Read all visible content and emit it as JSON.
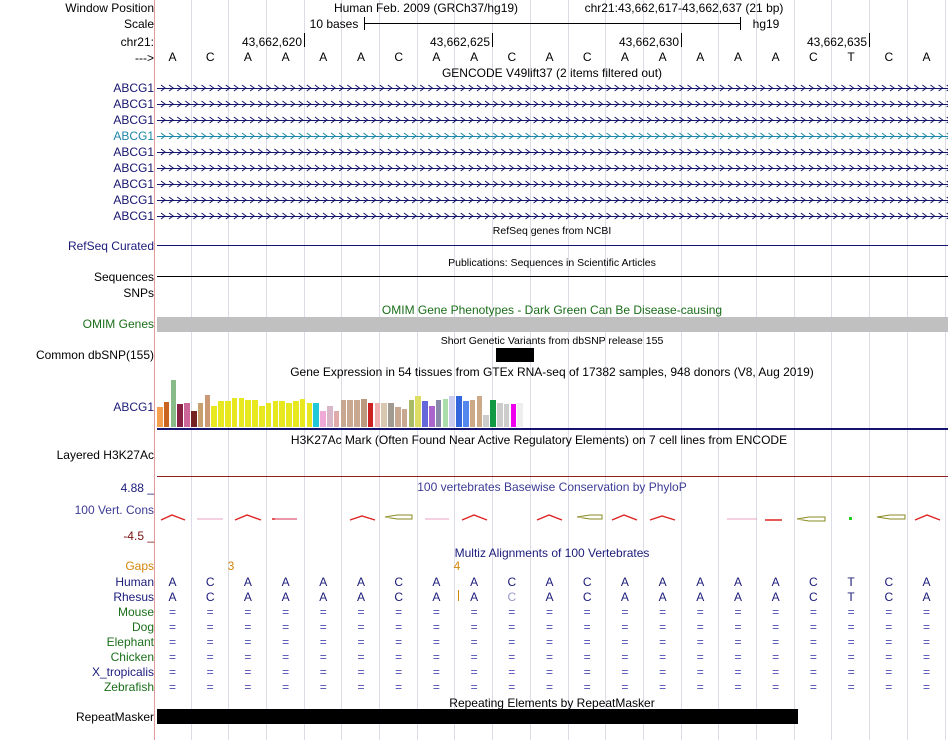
{
  "header": {
    "window_position_label": "Window Position",
    "assembly": "Human Feb. 2009 (GRCh37/hg19)",
    "position": "chr21:43,662,617-43,662,637 (21 bp)",
    "scale_label": "Scale",
    "scale_text": "10 bases",
    "db": "hg19",
    "chrom_label": "chr21:",
    "arrow_label": "--->"
  },
  "coords": [
    {
      "label": "43,662,620"
    },
    {
      "label": "43,662,625"
    },
    {
      "label": "43,662,630"
    },
    {
      "label": "43,662,635"
    }
  ],
  "sequence": [
    "A",
    "C",
    "A",
    "A",
    "A",
    "A",
    "C",
    "A",
    "A",
    "C",
    "A",
    "C",
    "A",
    "A",
    "A",
    "A",
    "A",
    "C",
    "T",
    "C",
    "A"
  ],
  "tracks": {
    "gencode": {
      "title": "GENCODE V49lift37 (2 items filtered out)",
      "items": [
        "ABCG1",
        "ABCG1",
        "ABCG1",
        "ABCG1",
        "ABCG1",
        "ABCG1",
        "ABCG1",
        "ABCG1",
        "ABCG1"
      ],
      "highlight_color": "#1e87a8",
      "color": "#14146e"
    },
    "refseq": {
      "label": "RefSeq Curated",
      "title": "RefSeq genes from NCBI"
    },
    "publications": {
      "label": "Sequences",
      "title": "Publications: Sequences in Scientific Articles"
    },
    "snps": {
      "label": "SNPs"
    },
    "omim": {
      "label": "OMIM Genes",
      "title": "OMIM Gene Phenotypes - Dark Green Can Be Disease-causing"
    },
    "dbsnp": {
      "label": "Common dbSNP(155)",
      "title": "Short Genetic Variants from dbSNP release 155"
    },
    "gtex": {
      "label": "ABCG1",
      "title": "Gene Expression in 54 tissues from GTEx RNA-seq of 17382 samples, 948 donors (V8, Aug 2019)",
      "levels": [
        0.42,
        0.53,
        1.0,
        0.48,
        0.52,
        0.35,
        0.52,
        0.68,
        0.45,
        0.55,
        0.55,
        0.62,
        0.62,
        0.58,
        0.58,
        0.45,
        0.5,
        0.55,
        0.55,
        0.52,
        0.55,
        0.6,
        0.52,
        0.52,
        0.35,
        0.45,
        0.35,
        0.58,
        0.58,
        0.58,
        0.6,
        0.5,
        0.5,
        0.52,
        0.52,
        0.42,
        0.38,
        0.58,
        0.65,
        0.55,
        0.45,
        0.58,
        0.6,
        0.65,
        0.65,
        0.55,
        0.58,
        0.65,
        0.25,
        0.58,
        0.5,
        0.48,
        0.48,
        0.5
      ],
      "colors": [
        "#f5a050",
        "#c86420",
        "#88bb88",
        "#882244",
        "#cc6699",
        "#772222",
        "#c8a070",
        "#cc9977",
        "#e8e820",
        "#e8e820",
        "#e8e820",
        "#e8e820",
        "#e8e820",
        "#e8e820",
        "#e8e820",
        "#e8e820",
        "#e8e820",
        "#e8e820",
        "#e8e820",
        "#e8e820",
        "#e8e820",
        "#e8e820",
        "#e8e820",
        "#20c8d8",
        "#f0aad8",
        "#d8b8c8",
        "#e0aaaa",
        "#c8a890",
        "#c8a890",
        "#c8a890",
        "#bb9a80",
        "#cc2222",
        "#f0b0b0",
        "#d8c8b0",
        "#a09a90",
        "#c8a890",
        "#c8a890",
        "#aabb66",
        "#dddd66",
        "#6666dd",
        "#aa66cc",
        "#8888aa",
        "#aaddaa",
        "#ccccee",
        "#3366dd",
        "#5588ee",
        "#ccaa88",
        "#ccaa88",
        "#cccccc",
        "#119944",
        "#cccccc",
        "#cccccc",
        "#ee00ee",
        "#eeeeee"
      ]
    },
    "h3k27ac": {
      "label": "Layered H3K27Ac",
      "title": "H3K27Ac Mark (Often Found Near Active Regulatory Elements) on 7 cell lines from ENCODE"
    },
    "phylop": {
      "label": "100 Vert. Cons",
      "title": "100 vertebrates Basewise Conservation by PhyloP",
      "max": "4.88 _",
      "min": "-4.5 _"
    },
    "multiz": {
      "title": "Multiz Alignments of 100 Vertebrates",
      "gaps_label": "Gaps",
      "gaps": [
        {
          "text": "3"
        },
        {
          "text": "4"
        }
      ],
      "human_label": "Human",
      "rhesus_label": "Rhesus",
      "species": [
        "Mouse",
        "Dog",
        "Elephant",
        "Chicken",
        "X_tropicalis",
        "Zebrafish"
      ],
      "equal_sign": "="
    },
    "repeatmasker": {
      "label": "RepeatMasker",
      "title": "Repeating Elements by RepeatMasker"
    }
  }
}
